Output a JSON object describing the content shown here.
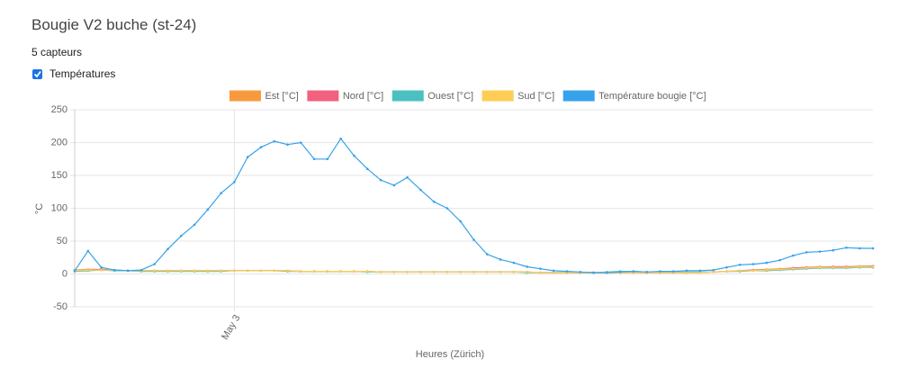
{
  "header": {
    "title": "Bougie V2 buche (st-24)",
    "subtitle": "5 capteurs",
    "checkbox_label": "Températures"
  },
  "chart_data": {
    "type": "line",
    "xlabel": "Heures (Zürich)",
    "ylabel": "°C",
    "categories": [
      null,
      null,
      null,
      null,
      null,
      null,
      null,
      null,
      null,
      null,
      null,
      null,
      "May 3",
      null,
      null,
      null,
      null,
      null,
      null,
      null,
      null,
      null,
      null,
      null,
      null,
      null,
      null,
      null,
      null,
      null,
      null,
      null,
      null,
      null,
      null,
      null,
      null,
      null,
      null,
      null,
      null,
      null,
      null,
      null,
      null,
      null,
      null,
      null,
      null,
      null,
      null,
      null,
      null,
      null,
      null,
      null,
      null,
      null,
      null,
      null,
      null
    ],
    "ylim": [
      -50,
      250
    ],
    "yticks": [
      -50,
      0,
      50,
      100,
      150,
      200,
      250
    ],
    "grid": true,
    "series": [
      {
        "name": "Est [°C]",
        "color": "#f79a3e",
        "values": [
          6,
          7,
          7,
          6,
          5,
          5,
          5,
          5,
          5,
          5,
          5,
          5,
          5,
          5,
          5,
          5,
          5,
          4,
          4,
          4,
          4,
          4,
          4,
          3,
          3,
          3,
          3,
          3,
          3,
          3,
          3,
          3,
          3,
          3,
          3,
          2,
          2,
          2,
          2,
          2,
          2,
          2,
          2,
          2,
          2,
          2,
          2,
          2,
          3,
          4,
          5,
          6,
          7,
          8,
          9,
          10,
          11,
          11,
          11,
          12,
          12
        ]
      },
      {
        "name": "Nord [°C]",
        "color": "#f2617f",
        "values": [
          5,
          6,
          7,
          6,
          5,
          5,
          5,
          5,
          5,
          5,
          5,
          5,
          5,
          5,
          5,
          5,
          5,
          4,
          4,
          4,
          4,
          4,
          4,
          3,
          3,
          3,
          3,
          3,
          3,
          3,
          3,
          3,
          3,
          3,
          3,
          2,
          2,
          2,
          2,
          2,
          2,
          2,
          2,
          2,
          2,
          2,
          2,
          2,
          3,
          4,
          5,
          6,
          6,
          7,
          9,
          10,
          10,
          11,
          11,
          11,
          12
        ]
      },
      {
        "name": "Ouest [°C]",
        "color": "#4bc0c0",
        "values": [
          4,
          5,
          6,
          5,
          5,
          4,
          4,
          4,
          4,
          4,
          4,
          4,
          5,
          5,
          5,
          5,
          4,
          4,
          4,
          4,
          4,
          4,
          3,
          3,
          3,
          3,
          3,
          3,
          3,
          3,
          3,
          3,
          3,
          3,
          2,
          2,
          2,
          2,
          2,
          2,
          3,
          4,
          4,
          3,
          3,
          3,
          3,
          3,
          3,
          4,
          4,
          5,
          5,
          6,
          7,
          8,
          9,
          9,
          9,
          10,
          10
        ]
      },
      {
        "name": "Sud [°C]",
        "color": "#ffcd56",
        "values": [
          5,
          6,
          6,
          6,
          5,
          5,
          5,
          5,
          5,
          5,
          5,
          5,
          5,
          5,
          5,
          5,
          5,
          4,
          4,
          4,
          4,
          4,
          4,
          3,
          3,
          3,
          3,
          3,
          3,
          3,
          3,
          3,
          3,
          3,
          3,
          2,
          2,
          2,
          2,
          2,
          2,
          2,
          2,
          2,
          2,
          2,
          2,
          2,
          3,
          4,
          5,
          5,
          6,
          7,
          8,
          9,
          10,
          10,
          10,
          11,
          11
        ]
      },
      {
        "name": "Température bougie [°C]",
        "color": "#36a2eb",
        "values": [
          5,
          35,
          10,
          6,
          5,
          6,
          15,
          38,
          58,
          75,
          98,
          123,
          140,
          178,
          193,
          202,
          197,
          200,
          175,
          175,
          206,
          180,
          160,
          143,
          135,
          147,
          128,
          110,
          100,
          80,
          52,
          30,
          22,
          17,
          11,
          8,
          5,
          4,
          3,
          2,
          2,
          3,
          4,
          3,
          4,
          4,
          5,
          5,
          6,
          10,
          14,
          15,
          17,
          21,
          28,
          33,
          34,
          36,
          40,
          39,
          39
        ]
      }
    ]
  }
}
